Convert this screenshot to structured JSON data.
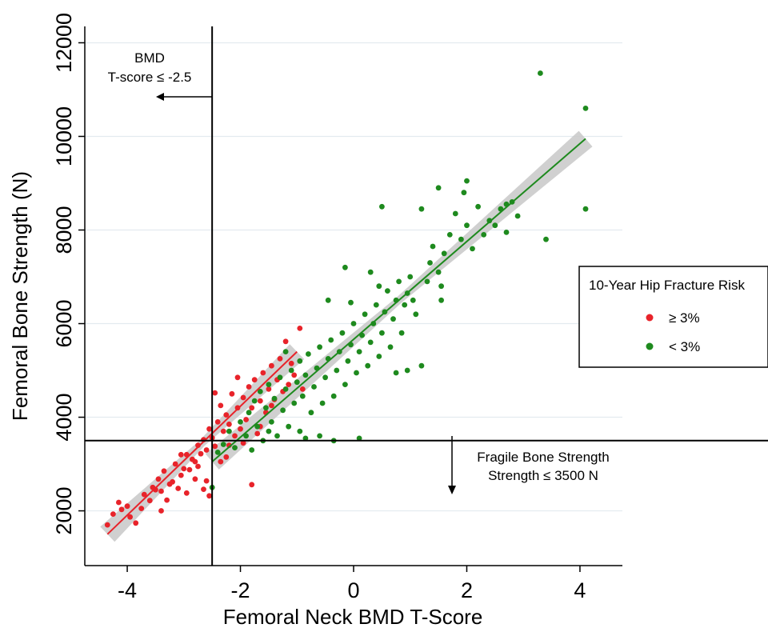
{
  "chart_data": {
    "type": "scatter",
    "xlabel": "Femoral Neck BMD T-Score",
    "ylabel": "Femoral Bone Strength (N)",
    "xlim": [
      -4.75,
      4.75
    ],
    "ylim": [
      830,
      12350
    ],
    "x_ticks": [
      -4,
      -2,
      0,
      2,
      4
    ],
    "x_tick_labels": [
      "-4",
      "-2",
      "0",
      "2",
      "4"
    ],
    "y_ticks": [
      2000,
      4000,
      6000,
      8000,
      10000,
      12000
    ],
    "y_tick_labels": [
      "2000",
      "4000",
      "6000",
      "8000",
      "10000",
      "12000"
    ],
    "grid": "horizontal",
    "colors": {
      "high_risk": "#e8232a",
      "low_risk": "#1e8a1e",
      "band": "#c8c8c8"
    },
    "threshold_lines": {
      "x": -2.5,
      "y": 3500
    },
    "annotations": {
      "bmd": {
        "line1": "BMD",
        "line2": "T-score ≤ -2.5"
      },
      "fragile": {
        "line1": "Fragile Bone Strength",
        "line2": "Strength ≤ 3500 N"
      }
    },
    "legend": {
      "title": "10-Year Hip Fracture Risk",
      "position": "right",
      "entries": [
        {
          "label": "≥ 3%",
          "series": "high_risk"
        },
        {
          "label": "< 3%",
          "series": "low_risk"
        }
      ]
    },
    "series": [
      {
        "key": "high_risk",
        "fit": {
          "x": [
            -4.35,
            -1.0
          ],
          "y": [
            1500,
            5400
          ]
        },
        "points": [
          [
            -4.35,
            1700
          ],
          [
            -4.25,
            1930
          ],
          [
            -4.15,
            2180
          ],
          [
            -4.1,
            2030
          ],
          [
            -3.95,
            1870
          ],
          [
            -3.85,
            1740
          ],
          [
            -3.75,
            2050
          ],
          [
            -3.7,
            2350
          ],
          [
            -3.6,
            2220
          ],
          [
            -3.55,
            2500
          ],
          [
            -3.45,
            2680
          ],
          [
            -3.4,
            2000
          ],
          [
            -3.4,
            2420
          ],
          [
            -3.35,
            2850
          ],
          [
            -3.3,
            2230
          ],
          [
            -3.25,
            2570
          ],
          [
            -3.2,
            2620
          ],
          [
            -3.15,
            3000
          ],
          [
            -3.1,
            2480
          ],
          [
            -3.05,
            2760
          ],
          [
            -3.0,
            2900
          ],
          [
            -2.95,
            2380
          ],
          [
            -2.95,
            3200
          ],
          [
            -2.9,
            2880
          ],
          [
            -2.85,
            3100
          ],
          [
            -2.8,
            2680
          ],
          [
            -2.8,
            3050
          ],
          [
            -2.75,
            3400
          ],
          [
            -2.7,
            3220
          ],
          [
            -2.65,
            2460
          ],
          [
            -2.65,
            3520
          ],
          [
            -2.6,
            3300
          ],
          [
            -2.55,
            3750
          ],
          [
            -2.5,
            3560
          ],
          [
            -2.45,
            3380
          ],
          [
            -2.4,
            3900
          ],
          [
            -2.35,
            3050
          ],
          [
            -2.35,
            4250
          ],
          [
            -2.3,
            3700
          ],
          [
            -2.25,
            4050
          ],
          [
            -2.2,
            3400
          ],
          [
            -2.2,
            3850
          ],
          [
            -2.15,
            4500
          ],
          [
            -2.1,
            3600
          ],
          [
            -2.05,
            4200
          ],
          [
            -2.0,
            3750
          ],
          [
            -1.95,
            4420
          ],
          [
            -1.9,
            3950
          ],
          [
            -1.85,
            4650
          ],
          [
            -1.8,
            2560
          ],
          [
            -1.8,
            4200
          ],
          [
            -1.75,
            4800
          ],
          [
            -1.7,
            3650
          ],
          [
            -1.65,
            4350
          ],
          [
            -1.6,
            4950
          ],
          [
            -1.55,
            4100
          ],
          [
            -1.5,
            4600
          ],
          [
            -1.45,
            5100
          ],
          [
            -1.4,
            4380
          ],
          [
            -1.35,
            4800
          ],
          [
            -1.3,
            5250
          ],
          [
            -1.25,
            4550
          ],
          [
            -1.2,
            5620
          ],
          [
            -1.15,
            4700
          ],
          [
            -1.1,
            5150
          ],
          [
            -1.05,
            4900
          ],
          [
            -0.95,
            5900
          ],
          [
            -0.9,
            4600
          ],
          [
            -2.6,
            2640
          ],
          [
            -2.55,
            2320
          ],
          [
            -3.05,
            3200
          ],
          [
            -2.25,
            3150
          ],
          [
            -1.95,
            3450
          ],
          [
            -1.65,
            3800
          ],
          [
            -2.45,
            4520
          ],
          [
            -4.0,
            2100
          ],
          [
            -3.5,
            2450
          ],
          [
            -2.05,
            4850
          ],
          [
            -1.45,
            4250
          ],
          [
            -2.75,
            2950
          ]
        ]
      },
      {
        "key": "low_risk",
        "fit": {
          "x": [
            -2.5,
            4.1
          ],
          "y": [
            3050,
            9950
          ]
        },
        "points": [
          [
            -2.5,
            2500
          ],
          [
            -2.4,
            3250
          ],
          [
            -2.3,
            3420
          ],
          [
            -2.2,
            3700
          ],
          [
            -2.1,
            3350
          ],
          [
            -2.0,
            3900
          ],
          [
            -1.9,
            3600
          ],
          [
            -1.85,
            4100
          ],
          [
            -1.8,
            3300
          ],
          [
            -1.75,
            4350
          ],
          [
            -1.7,
            3800
          ],
          [
            -1.65,
            4550
          ],
          [
            -1.6,
            3500
          ],
          [
            -1.55,
            4200
          ],
          [
            -1.5,
            4700
          ],
          [
            -1.45,
            3900
          ],
          [
            -1.4,
            4400
          ],
          [
            -1.35,
            3600
          ],
          [
            -1.3,
            4850
          ],
          [
            -1.25,
            4150
          ],
          [
            -1.2,
            4600
          ],
          [
            -1.15,
            3800
          ],
          [
            -1.1,
            5000
          ],
          [
            -1.05,
            4300
          ],
          [
            -1.0,
            4750
          ],
          [
            -0.95,
            3700
          ],
          [
            -0.95,
            5200
          ],
          [
            -0.9,
            4450
          ],
          [
            -0.85,
            3550
          ],
          [
            -0.85,
            4900
          ],
          [
            -0.8,
            5350
          ],
          [
            -0.75,
            4100
          ],
          [
            -0.7,
            4650
          ],
          [
            -0.65,
            5050
          ],
          [
            -0.6,
            3600
          ],
          [
            -0.6,
            5500
          ],
          [
            -0.55,
            4300
          ],
          [
            -0.5,
            4850
          ],
          [
            -0.45,
            5250
          ],
          [
            -0.4,
            5650
          ],
          [
            -0.35,
            4450
          ],
          [
            -0.3,
            5000
          ],
          [
            -0.25,
            5400
          ],
          [
            -0.2,
            5800
          ],
          [
            -0.15,
            4700
          ],
          [
            -0.1,
            5200
          ],
          [
            -0.05,
            5550
          ],
          [
            0.0,
            6000
          ],
          [
            0.05,
            4950
          ],
          [
            0.1,
            5400
          ],
          [
            0.15,
            5750
          ],
          [
            0.2,
            6200
          ],
          [
            0.25,
            5100
          ],
          [
            0.3,
            5600
          ],
          [
            0.35,
            6000
          ],
          [
            0.4,
            6400
          ],
          [
            0.45,
            5300
          ],
          [
            0.5,
            5800
          ],
          [
            0.55,
            6250
          ],
          [
            0.6,
            6700
          ],
          [
            0.65,
            5500
          ],
          [
            0.7,
            6100
          ],
          [
            0.75,
            6500
          ],
          [
            0.8,
            6900
          ],
          [
            0.85,
            5800
          ],
          [
            0.9,
            6400
          ],
          [
            0.95,
            6650
          ],
          [
            1.0,
            7000
          ],
          [
            1.1,
            6200
          ],
          [
            1.2,
            5100
          ],
          [
            1.3,
            6900
          ],
          [
            1.35,
            7300
          ],
          [
            1.4,
            7650
          ],
          [
            1.5,
            7100
          ],
          [
            1.55,
            6800
          ],
          [
            1.6,
            7500
          ],
          [
            1.7,
            7900
          ],
          [
            1.8,
            8350
          ],
          [
            1.9,
            7800
          ],
          [
            2.0,
            8100
          ],
          [
            2.1,
            7600
          ],
          [
            2.2,
            8500
          ],
          [
            2.3,
            7900
          ],
          [
            2.4,
            8200
          ],
          [
            2.5,
            8100
          ],
          [
            2.6,
            8450
          ],
          [
            2.7,
            7950
          ],
          [
            2.8,
            8600
          ],
          [
            2.9,
            8300
          ],
          [
            3.3,
            11350
          ],
          [
            3.4,
            7800
          ],
          [
            4.1,
            10600
          ],
          [
            4.1,
            8450
          ],
          [
            0.5,
            8500
          ],
          [
            1.5,
            8900
          ],
          [
            1.95,
            8800
          ],
          [
            0.1,
            3550
          ],
          [
            -0.35,
            3500
          ],
          [
            0.75,
            4950
          ],
          [
            1.2,
            8450
          ],
          [
            -0.15,
            7200
          ],
          [
            0.3,
            7100
          ],
          [
            2.0,
            9050
          ],
          [
            1.05,
            6500
          ],
          [
            2.7,
            8550
          ],
          [
            1.55,
            6500
          ],
          [
            0.45,
            6800
          ],
          [
            -0.45,
            6500
          ],
          [
            -0.05,
            6450
          ],
          [
            0.95,
            5000
          ],
          [
            -1.2,
            5400
          ],
          [
            -1.5,
            3700
          ]
        ]
      }
    ]
  }
}
